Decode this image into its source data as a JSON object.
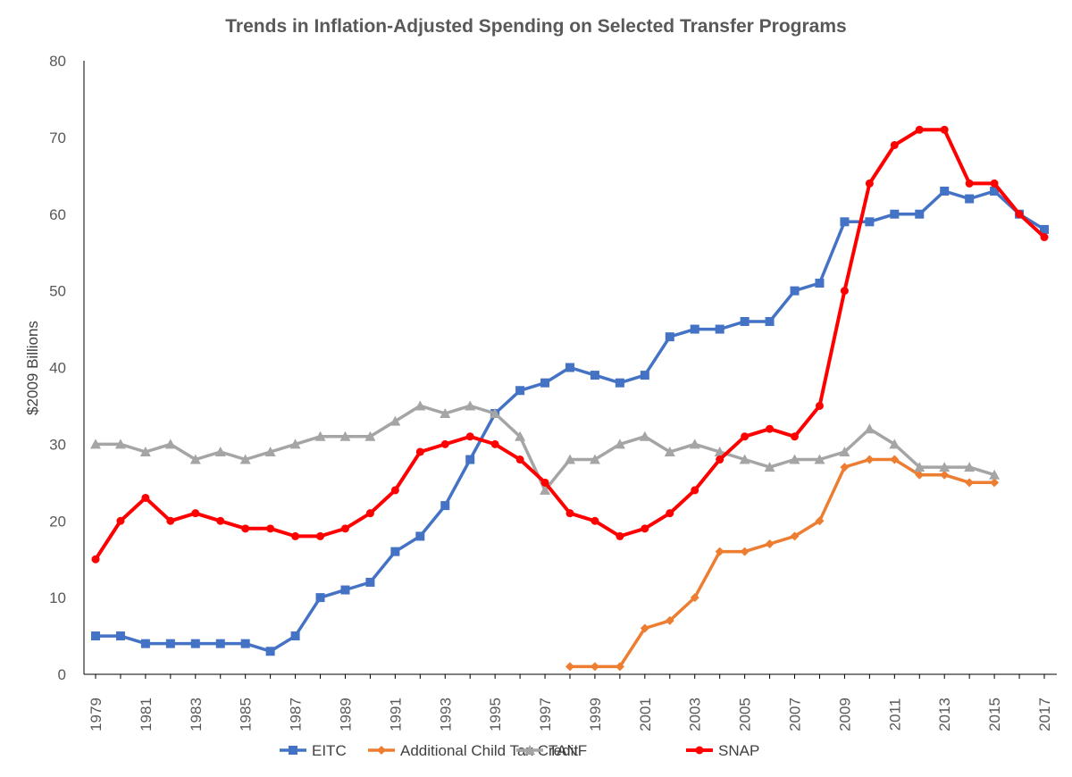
{
  "chart_data": {
    "type": "line",
    "title": "Trends in Inflation-Adjusted Spending on Selected Transfer Programs",
    "xlabel": "",
    "ylabel": "$2009 Billions",
    "ylim": [
      0,
      80
    ],
    "yticks": [
      0,
      10,
      20,
      30,
      40,
      50,
      60,
      70,
      80
    ],
    "x": [
      1979,
      1980,
      1981,
      1982,
      1983,
      1984,
      1985,
      1986,
      1987,
      1988,
      1989,
      1990,
      1991,
      1992,
      1993,
      1994,
      1995,
      1996,
      1997,
      1998,
      1999,
      2000,
      2001,
      2002,
      2003,
      2004,
      2005,
      2006,
      2007,
      2008,
      2009,
      2010,
      2011,
      2012,
      2013,
      2014,
      2015,
      2016,
      2017
    ],
    "xtick_labels": [
      "1979",
      "1981",
      "1983",
      "1985",
      "1987",
      "1989",
      "1991",
      "1993",
      "1995",
      "1997",
      "1999",
      "2001",
      "2003",
      "2005",
      "2007",
      "2009",
      "2011",
      "2013",
      "2015",
      "2017"
    ],
    "grid": false,
    "legend_position": "bottom",
    "series": [
      {
        "name": "EITC",
        "color": "#4472C4",
        "marker": "square",
        "values": [
          5,
          5,
          4,
          4,
          4,
          4,
          4,
          3,
          5,
          10,
          11,
          12,
          16,
          18,
          22,
          28,
          34,
          37,
          38,
          40,
          39,
          38,
          39,
          44,
          45,
          45,
          46,
          46,
          50,
          51,
          59,
          59,
          60,
          60,
          63,
          62,
          63,
          60,
          58
        ]
      },
      {
        "name": "Additional Child Tax Credit",
        "color": "#ED7D31",
        "marker": "diamond",
        "values": [
          null,
          null,
          null,
          null,
          null,
          null,
          null,
          null,
          null,
          null,
          null,
          null,
          null,
          null,
          null,
          null,
          null,
          null,
          null,
          1,
          1,
          1,
          6,
          7,
          10,
          16,
          16,
          17,
          18,
          20,
          27,
          28,
          28,
          26,
          26,
          25,
          25,
          null,
          null
        ]
      },
      {
        "name": "TANF",
        "color": "#A5A5A5",
        "marker": "triangle",
        "values": [
          30,
          30,
          29,
          30,
          28,
          29,
          28,
          29,
          30,
          31,
          31,
          31,
          33,
          35,
          34,
          35,
          34,
          31,
          24,
          28,
          28,
          30,
          31,
          29,
          30,
          29,
          28,
          27,
          28,
          28,
          29,
          32,
          30,
          27,
          27,
          27,
          26,
          null,
          null
        ]
      },
      {
        "name": "SNAP",
        "color": "#FF0000",
        "marker": "circle",
        "values": [
          15,
          20,
          23,
          20,
          21,
          20,
          19,
          19,
          18,
          18,
          19,
          21,
          24,
          29,
          30,
          31,
          30,
          28,
          25,
          21,
          20,
          18,
          19,
          21,
          24,
          28,
          31,
          32,
          31,
          35,
          50,
          64,
          69,
          71,
          71,
          64,
          64,
          60,
          57
        ]
      }
    ]
  }
}
